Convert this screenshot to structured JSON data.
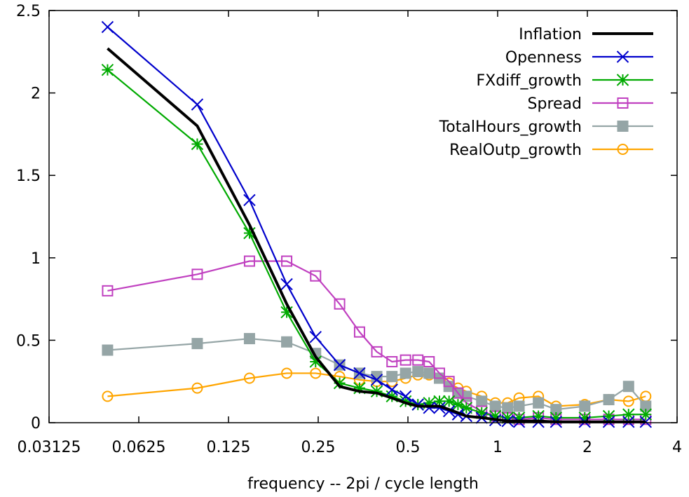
{
  "chart_data": {
    "type": "line",
    "title": "",
    "xlabel": "frequency -- 2pi / cycle length",
    "ylabel": "",
    "xscale": "log2",
    "xlim": [
      0.03125,
      4
    ],
    "ylim": [
      0,
      2.5
    ],
    "xticks": [
      {
        "value": 0.03125,
        "label": "0.03125"
      },
      {
        "value": 0.0625,
        "label": "0.0625"
      },
      {
        "value": 0.125,
        "label": "0.125"
      },
      {
        "value": 0.25,
        "label": "0.25"
      },
      {
        "value": 0.5,
        "label": "0.5"
      },
      {
        "value": 1,
        "label": "1"
      },
      {
        "value": 2,
        "label": "2"
      },
      {
        "value": 4,
        "label": "4"
      }
    ],
    "yticks": [
      {
        "value": 0,
        "label": "0"
      },
      {
        "value": 0.5,
        "label": "0.5"
      },
      {
        "value": 1,
        "label": "1"
      },
      {
        "value": 1.5,
        "label": "1.5"
      },
      {
        "value": 2,
        "label": "2"
      },
      {
        "value": 2.5,
        "label": "2.5"
      }
    ],
    "legend_position": "top-right",
    "grid": false,
    "series": [
      {
        "name": "Inflation",
        "color": "#000000",
        "marker": "none",
        "x": [
          0.0491,
          0.0982,
          0.147,
          0.196,
          0.245,
          0.295,
          0.344,
          0.393,
          0.442,
          0.491,
          0.54,
          0.589,
          0.638,
          0.687,
          0.736,
          0.785,
          0.884,
          0.982,
          1.08,
          1.18,
          1.37,
          1.57,
          1.96,
          2.36,
          2.75,
          3.14
        ],
        "y": [
          2.27,
          1.8,
          1.2,
          0.72,
          0.4,
          0.22,
          0.19,
          0.18,
          0.15,
          0.12,
          0.1,
          0.1,
          0.1,
          0.08,
          0.06,
          0.04,
          0.03,
          0.02,
          0.01,
          0.01,
          0.01,
          0.005,
          0.005,
          0.005,
          0.005,
          0.005
        ]
      },
      {
        "name": "Openness",
        "color": "#0000cc",
        "marker": "x",
        "x": [
          0.0491,
          0.0982,
          0.147,
          0.196,
          0.245,
          0.295,
          0.344,
          0.393,
          0.442,
          0.491,
          0.54,
          0.589,
          0.638,
          0.687,
          0.736,
          0.785,
          0.884,
          0.982,
          1.08,
          1.18,
          1.37,
          1.57,
          1.96,
          2.36,
          2.75,
          3.14
        ],
        "y": [
          2.4,
          1.93,
          1.35,
          0.84,
          0.52,
          0.35,
          0.3,
          0.26,
          0.2,
          0.16,
          0.11,
          0.09,
          0.09,
          0.07,
          0.05,
          0.04,
          0.03,
          0.015,
          0.01,
          0.005,
          0.005,
          0.005,
          0.005,
          0.005,
          0.005,
          0.005
        ]
      },
      {
        "name": "FXdiff_growth",
        "color": "#00aa00",
        "marker": "asterisk",
        "x": [
          0.0491,
          0.0982,
          0.147,
          0.196,
          0.245,
          0.295,
          0.344,
          0.393,
          0.442,
          0.491,
          0.54,
          0.589,
          0.638,
          0.687,
          0.736,
          0.785,
          0.884,
          0.982,
          1.08,
          1.18,
          1.37,
          1.57,
          1.96,
          2.36,
          2.75,
          3.14
        ],
        "y": [
          2.14,
          1.69,
          1.15,
          0.67,
          0.37,
          0.24,
          0.21,
          0.19,
          0.16,
          0.13,
          0.11,
          0.12,
          0.13,
          0.13,
          0.11,
          0.09,
          0.06,
          0.04,
          0.03,
          0.03,
          0.04,
          0.03,
          0.03,
          0.04,
          0.05,
          0.05
        ]
      },
      {
        "name": "Spread",
        "color": "#c040c0",
        "marker": "open-square",
        "x": [
          0.0491,
          0.0982,
          0.147,
          0.196,
          0.245,
          0.295,
          0.344,
          0.393,
          0.442,
          0.491,
          0.54,
          0.589,
          0.638,
          0.687,
          0.736,
          0.785,
          0.884,
          0.982,
          1.08,
          1.18,
          1.37,
          1.57,
          1.96,
          2.36,
          2.75,
          3.14
        ],
        "y": [
          0.8,
          0.9,
          0.98,
          0.98,
          0.89,
          0.72,
          0.55,
          0.43,
          0.37,
          0.38,
          0.38,
          0.37,
          0.3,
          0.25,
          0.18,
          0.12,
          0.07,
          0.04,
          0.03,
          0.02,
          0.03,
          0.02,
          0.02,
          0.02,
          0.02,
          0.02
        ]
      },
      {
        "name": "TotalHours_growth",
        "color": "#95a5a6",
        "marker": "filled-square",
        "x": [
          0.0491,
          0.0982,
          0.147,
          0.196,
          0.245,
          0.295,
          0.344,
          0.393,
          0.442,
          0.491,
          0.54,
          0.589,
          0.638,
          0.687,
          0.736,
          0.785,
          0.884,
          0.982,
          1.08,
          1.18,
          1.37,
          1.57,
          1.96,
          2.36,
          2.75,
          3.14
        ],
        "y": [
          0.44,
          0.48,
          0.51,
          0.49,
          0.42,
          0.35,
          0.3,
          0.28,
          0.28,
          0.3,
          0.31,
          0.3,
          0.27,
          0.22,
          0.18,
          0.16,
          0.13,
          0.1,
          0.09,
          0.1,
          0.12,
          0.08,
          0.1,
          0.14,
          0.22,
          0.1
        ]
      },
      {
        "name": "RealOutp_growth",
        "color": "#ffa500",
        "marker": "open-circle",
        "x": [
          0.0491,
          0.0982,
          0.147,
          0.196,
          0.245,
          0.295,
          0.344,
          0.393,
          0.442,
          0.491,
          0.54,
          0.589,
          0.638,
          0.687,
          0.736,
          0.785,
          0.884,
          0.982,
          1.08,
          1.18,
          1.37,
          1.57,
          1.96,
          2.36,
          2.75,
          3.14
        ],
        "y": [
          0.16,
          0.21,
          0.27,
          0.3,
          0.3,
          0.28,
          0.26,
          0.25,
          0.25,
          0.27,
          0.29,
          0.29,
          0.27,
          0.24,
          0.21,
          0.19,
          0.16,
          0.12,
          0.12,
          0.15,
          0.16,
          0.1,
          0.11,
          0.14,
          0.13,
          0.16
        ]
      }
    ]
  }
}
